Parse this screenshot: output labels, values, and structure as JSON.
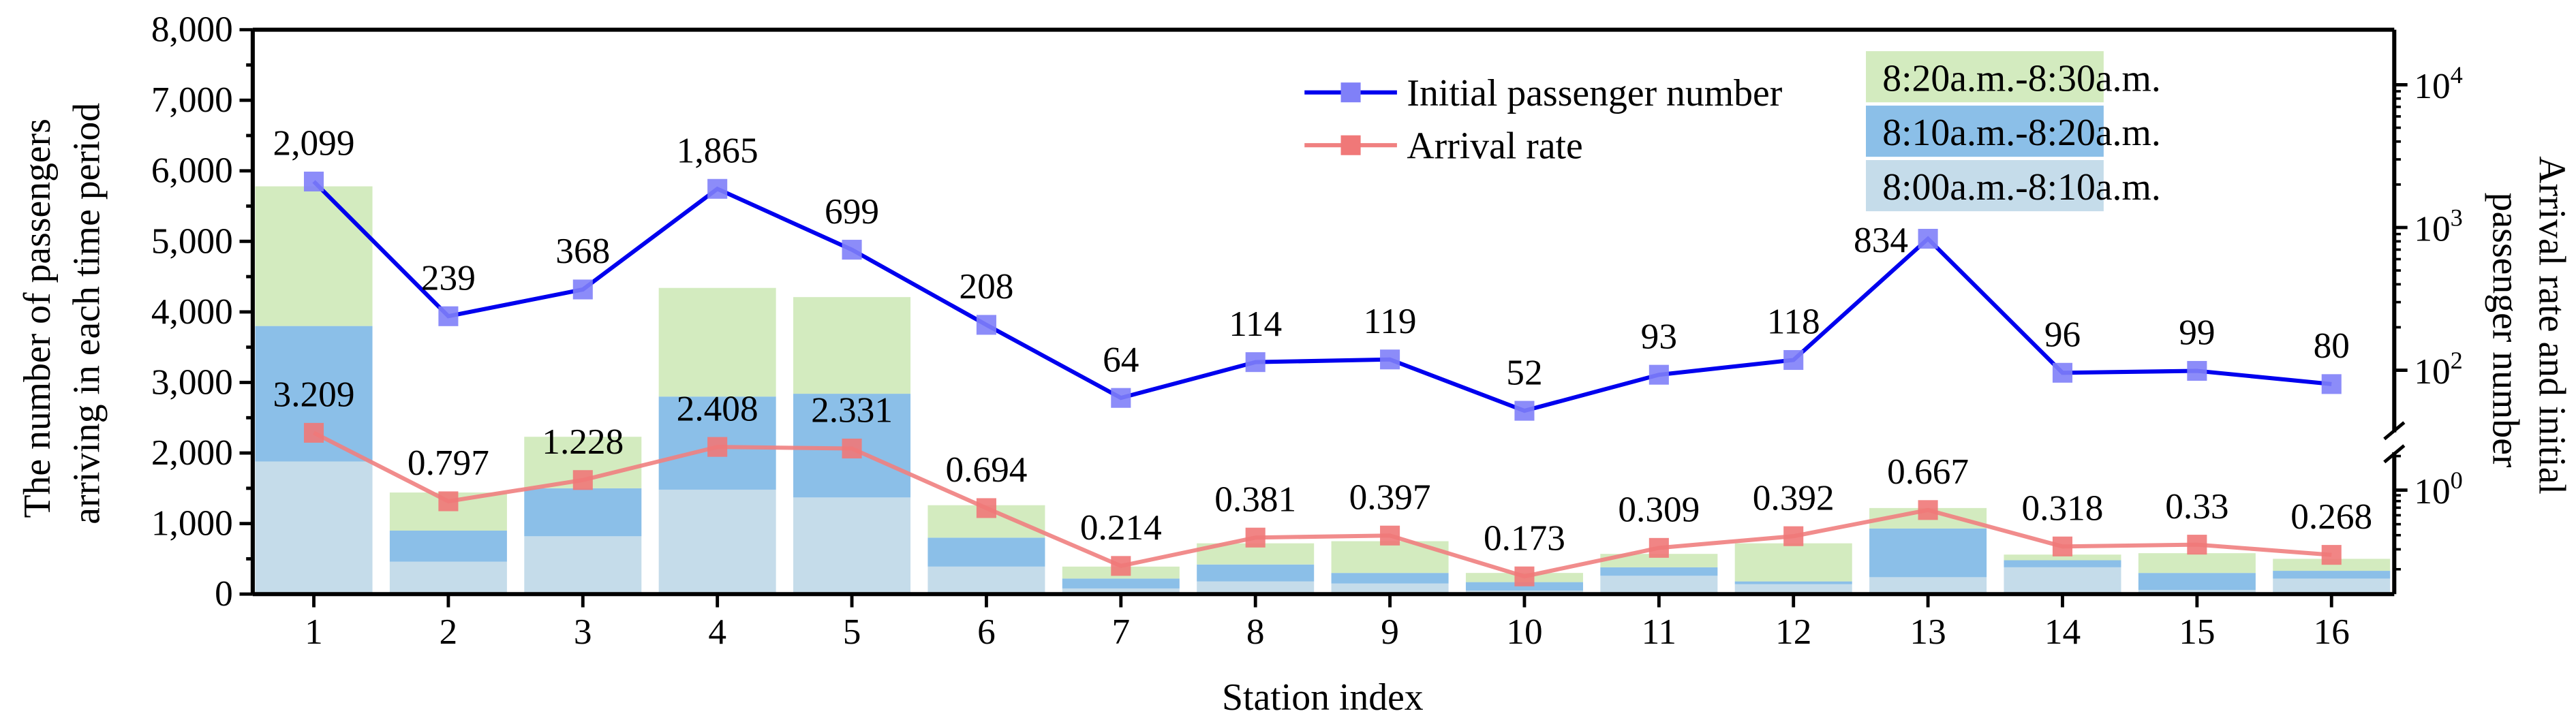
{
  "chart_data": {
    "type": "bar",
    "xlabel": "Station index",
    "ylabel_left": [
      "The number of passengers",
      "arriving in each time period"
    ],
    "ylabel_right": [
      "Arrival rate and initial",
      "passenger number"
    ],
    "ylim_left": [
      0,
      8000
    ],
    "yticks_left": [
      "0",
      "1,000",
      "2,000",
      "3,000",
      "4,000",
      "5,000",
      "6,000",
      "7,000",
      "8,000"
    ],
    "right_axis": {
      "scale": "log",
      "broken": true,
      "tick_labels": [
        "10",
        "10",
        "10",
        "10"
      ],
      "exponents": [
        "4",
        "3",
        "2",
        "0"
      ]
    },
    "categories": [
      "1",
      "2",
      "3",
      "4",
      "5",
      "6",
      "7",
      "8",
      "9",
      "10",
      "11",
      "12",
      "13",
      "14",
      "15",
      "16"
    ],
    "stacked_series": [
      {
        "name": "8:00a.m.-8:10a.m.",
        "color": "#c5dcea",
        "values": [
          1880,
          460,
          820,
          1480,
          1370,
          390,
          80,
          180,
          150,
          50,
          260,
          140,
          240,
          380,
          60,
          220
        ]
      },
      {
        "name": "8:10a.m.-8:20a.m.",
        "color": "#8bbfe8",
        "values": [
          1920,
          440,
          680,
          1320,
          1470,
          410,
          140,
          240,
          150,
          120,
          120,
          40,
          690,
          100,
          240,
          110
        ]
      },
      {
        "name": "8:20a.m.-8:30a.m.",
        "color": "#d3ebbf",
        "values": [
          1980,
          540,
          730,
          1540,
          1370,
          460,
          170,
          300,
          450,
          130,
          190,
          540,
          290,
          80,
          280,
          170
        ]
      }
    ],
    "line_series": [
      {
        "name": "Initial passenger number",
        "color": "#0000ee",
        "marker_color": "#8080f8",
        "values": [
          2099,
          239,
          368,
          1865,
          699,
          208,
          64,
          114,
          119,
          52,
          93,
          118,
          834,
          96,
          99,
          80
        ],
        "labels": [
          "2,099",
          "239",
          "368",
          "1,865",
          "699",
          "208",
          "64",
          "114",
          "119",
          "52",
          "93",
          "118",
          "834",
          "96",
          "99",
          "80"
        ]
      },
      {
        "name": "Arrival rate",
        "color": "#f08080",
        "marker_color": "#f07878",
        "values": [
          3.209,
          0.797,
          1.228,
          2.408,
          2.331,
          0.694,
          0.214,
          0.381,
          0.397,
          0.173,
          0.309,
          0.392,
          0.667,
          0.318,
          0.33,
          0.268
        ],
        "labels": [
          "3.209",
          "0.797",
          "1.228",
          "2.408",
          "2.331",
          "0.694",
          "0.214",
          "0.381",
          "0.397",
          "0.173",
          "0.309",
          "0.392",
          "0.667",
          "0.318",
          "0.33",
          "0.268"
        ]
      }
    ],
    "legend_placement": "top-right",
    "grid": false
  }
}
